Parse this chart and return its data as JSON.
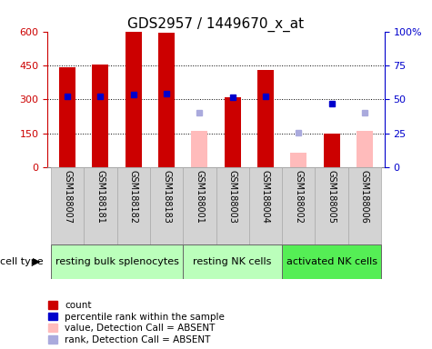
{
  "title": "GDS2957 / 1449670_x_at",
  "samples": [
    "GSM188007",
    "GSM188181",
    "GSM188182",
    "GSM188183",
    "GSM188001",
    "GSM188003",
    "GSM188004",
    "GSM188002",
    "GSM188005",
    "GSM188006"
  ],
  "count_values": [
    440,
    455,
    600,
    595,
    null,
    310,
    430,
    null,
    150,
    null
  ],
  "count_absent": [
    null,
    null,
    null,
    null,
    160,
    null,
    null,
    65,
    null,
    160
  ],
  "percentile_rank": [
    315,
    315,
    320,
    325,
    null,
    310,
    315,
    null,
    280,
    null
  ],
  "rank_absent": [
    null,
    null,
    null,
    null,
    240,
    null,
    null,
    155,
    null,
    240
  ],
  "cell_groups": [
    {
      "label": "resting bulk splenocytes",
      "start": 0,
      "end": 4,
      "color": "#bbffbb"
    },
    {
      "label": "resting NK cells",
      "start": 4,
      "end": 7,
      "color": "#bbffbb"
    },
    {
      "label": "activated NK cells",
      "start": 7,
      "end": 10,
      "color": "#55ee55"
    }
  ],
  "ylim_left": [
    0,
    600
  ],
  "ylim_right": [
    0,
    100
  ],
  "yticks_left": [
    0,
    150,
    300,
    450,
    600
  ],
  "yticks_right": [
    0,
    25,
    50,
    75,
    100
  ],
  "bar_width": 0.5,
  "count_color": "#cc0000",
  "count_absent_color": "#ffbbbb",
  "rank_color": "#0000cc",
  "rank_absent_color": "#aaaadd",
  "grid_color": "#000000",
  "left_axis_color": "#cc0000",
  "right_axis_color": "#0000cc",
  "title_color": "#000000",
  "title_fontsize": 11,
  "tick_fontsize": 8,
  "sample_fontsize": 7,
  "label_fontsize": 8,
  "legend_fontsize": 7.5
}
